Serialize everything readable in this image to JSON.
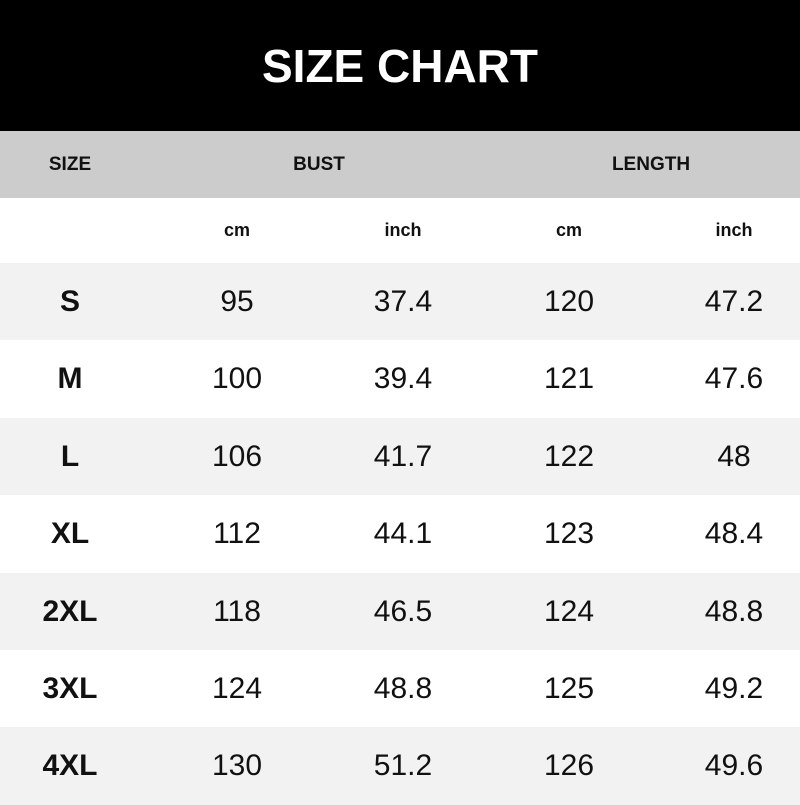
{
  "title": "SIZE CHART",
  "headers": {
    "size": "SIZE",
    "bust": "BUST",
    "length": "LENGTH"
  },
  "units": [
    "cm",
    "inch",
    "cm",
    "inch"
  ],
  "rows": [
    [
      "S",
      "95",
      "37.4",
      "120",
      "47.2"
    ],
    [
      "M",
      "100",
      "39.4",
      "121",
      "47.6"
    ],
    [
      "L",
      "106",
      "41.7",
      "122",
      "48"
    ],
    [
      "XL",
      "112",
      "44.1",
      "123",
      "48.4"
    ],
    [
      "2XL",
      "118",
      "46.5",
      "124",
      "48.8"
    ],
    [
      "3XL",
      "124",
      "48.8",
      "125",
      "49.2"
    ],
    [
      "4XL",
      "130",
      "51.2",
      "126",
      "49.6"
    ]
  ],
  "colors": {
    "title_bg": "#000000",
    "header_bg": "#cccccc",
    "stripe_bg": "#f2f2f2"
  }
}
